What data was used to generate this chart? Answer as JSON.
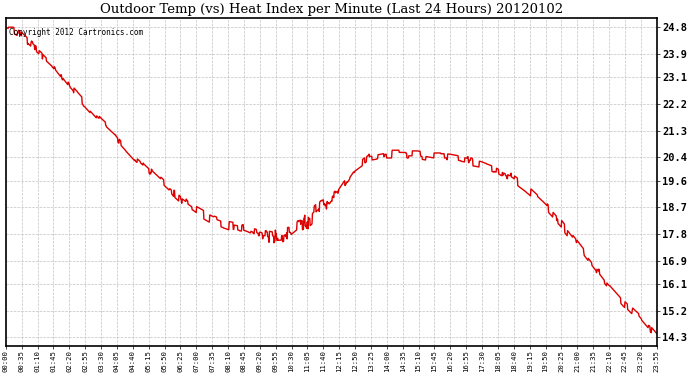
{
  "title": "Outdoor Temp (vs) Heat Index per Minute (Last 24 Hours) 20120102",
  "copyright": "Copyright 2012 Cartronics.com",
  "line_color": "#dd0000",
  "background_color": "#ffffff",
  "grid_color": "#bbbbbb",
  "yticks": [
    14.3,
    15.2,
    16.1,
    16.9,
    17.8,
    18.7,
    19.6,
    20.4,
    21.3,
    22.2,
    23.1,
    23.9,
    24.8
  ],
  "ymin": 14.0,
  "ymax": 25.1,
  "xtick_labels": [
    "00:00",
    "00:35",
    "01:10",
    "01:45",
    "02:20",
    "02:55",
    "03:30",
    "04:05",
    "04:40",
    "05:15",
    "05:50",
    "06:25",
    "07:00",
    "07:35",
    "08:10",
    "08:45",
    "09:20",
    "09:55",
    "10:30",
    "11:05",
    "11:40",
    "12:15",
    "12:50",
    "13:25",
    "14:00",
    "14:35",
    "15:10",
    "15:45",
    "16:20",
    "16:55",
    "17:30",
    "18:05",
    "18:40",
    "19:15",
    "19:50",
    "20:25",
    "21:00",
    "21:35",
    "22:10",
    "22:45",
    "23:20",
    "23:55"
  ],
  "key_times": [
    0,
    35,
    70,
    105,
    140,
    175,
    210,
    245,
    280,
    315,
    350,
    385,
    420,
    455,
    490,
    525,
    560,
    595,
    630,
    665,
    700,
    735,
    770,
    805,
    840,
    875,
    910,
    945,
    980,
    1015,
    1050,
    1085,
    1120,
    1155,
    1190,
    1225,
    1260,
    1295,
    1330,
    1365,
    1400,
    1439
  ],
  "key_values": [
    24.8,
    24.5,
    24.0,
    23.5,
    22.8,
    22.2,
    21.6,
    21.1,
    20.5,
    20.0,
    19.5,
    19.0,
    18.6,
    18.3,
    18.1,
    18.0,
    17.8,
    17.7,
    17.75,
    18.2,
    18.7,
    19.2,
    20.0,
    20.4,
    20.5,
    20.5,
    20.5,
    20.4,
    20.4,
    20.3,
    20.2,
    20.0,
    19.7,
    19.3,
    18.8,
    18.2,
    17.5,
    16.8,
    16.1,
    15.5,
    15.0,
    14.3
  ]
}
